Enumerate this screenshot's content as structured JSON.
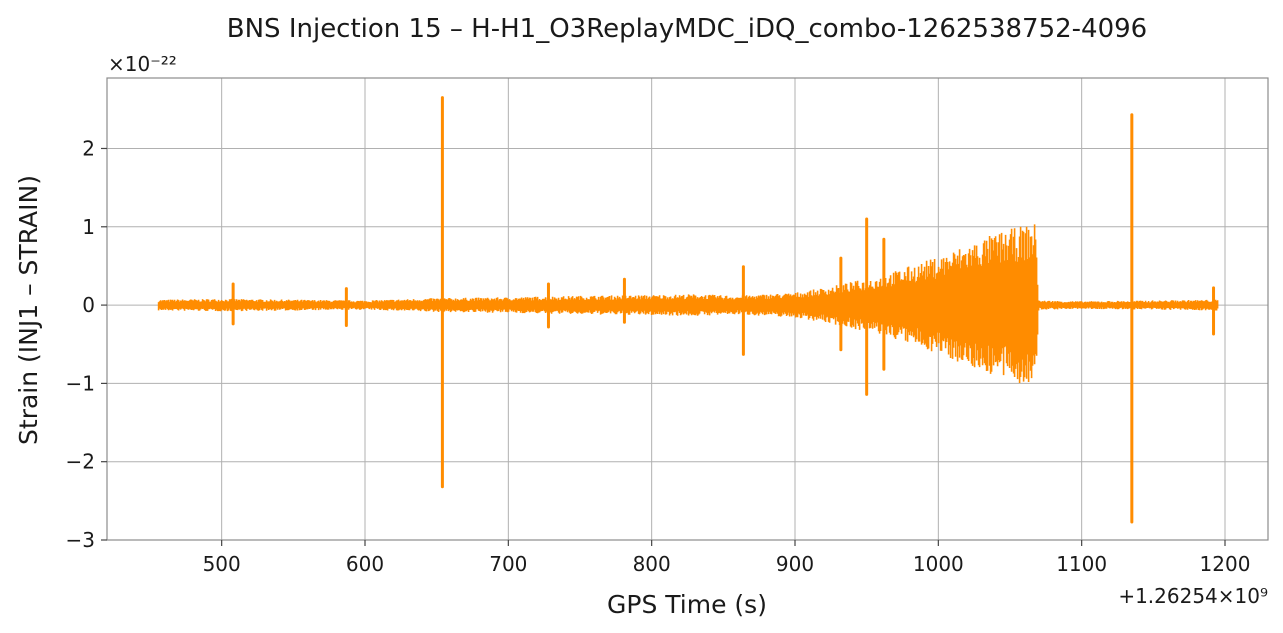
{
  "chart_data": {
    "type": "line",
    "title": "BNS Injection 15 – H-H1_O3ReplayMDC_iDQ_combo-1262538752-4096",
    "xlabel": "GPS Time (s)",
    "ylabel": "Strain (INJ1 – STRAIN)",
    "x_offset_label": "+1.26254×10⁹",
    "y_scale_label": "×10⁻²²",
    "xlim": [
      420,
      1230
    ],
    "ylim": [
      -3.0,
      2.9
    ],
    "x_ticks": [
      500,
      600,
      700,
      800,
      900,
      1000,
      1100,
      1200
    ],
    "x_tick_labels": [
      "500",
      "600",
      "700",
      "800",
      "900",
      "1000",
      "1100",
      "1200"
    ],
    "y_ticks": [
      -3,
      -2,
      -1,
      0,
      1,
      2
    ],
    "y_tick_labels": [
      "−3",
      "−2",
      "−1",
      "0",
      "1",
      "2"
    ],
    "grid": true,
    "series": [
      {
        "color": "#ff8c00",
        "x_range": [
          456,
          1195
        ],
        "background_envelope": [
          [
            456,
            0.07
          ],
          [
            500,
            0.08
          ],
          [
            550,
            0.07
          ],
          [
            600,
            0.06
          ],
          [
            650,
            0.09
          ],
          [
            700,
            0.1
          ],
          [
            750,
            0.12
          ],
          [
            800,
            0.13
          ],
          [
            830,
            0.14
          ],
          [
            860,
            0.12
          ],
          [
            900,
            0.16
          ],
          [
            920,
            0.22
          ],
          [
            940,
            0.3
          ],
          [
            960,
            0.38
          ],
          [
            980,
            0.5
          ],
          [
            1000,
            0.62
          ],
          [
            1020,
            0.78
          ],
          [
            1040,
            0.92
          ],
          [
            1060,
            1.02
          ],
          [
            1068,
            1.05
          ],
          [
            1070,
            0.06
          ],
          [
            1100,
            0.05
          ],
          [
            1150,
            0.06
          ],
          [
            1195,
            0.07
          ]
        ],
        "glitches": [
          {
            "x": 508,
            "ymax": 0.27,
            "ymin": -0.24
          },
          {
            "x": 587,
            "ymax": 0.21,
            "ymin": -0.26
          },
          {
            "x": 654,
            "ymax": 2.65,
            "ymin": -2.32
          },
          {
            "x": 728,
            "ymax": 0.27,
            "ymin": -0.28
          },
          {
            "x": 781,
            "ymax": 0.33,
            "ymin": -0.22
          },
          {
            "x": 864,
            "ymax": 0.49,
            "ymin": -0.63
          },
          {
            "x": 932,
            "ymax": 0.6,
            "ymin": -0.57
          },
          {
            "x": 950,
            "ymax": 1.1,
            "ymin": -1.14
          },
          {
            "x": 962,
            "ymax": 0.84,
            "ymin": -0.82
          },
          {
            "x": 1135,
            "ymax": 2.43,
            "ymin": -2.77
          },
          {
            "x": 1192,
            "ymax": 0.22,
            "ymin": -0.37
          }
        ]
      }
    ]
  }
}
